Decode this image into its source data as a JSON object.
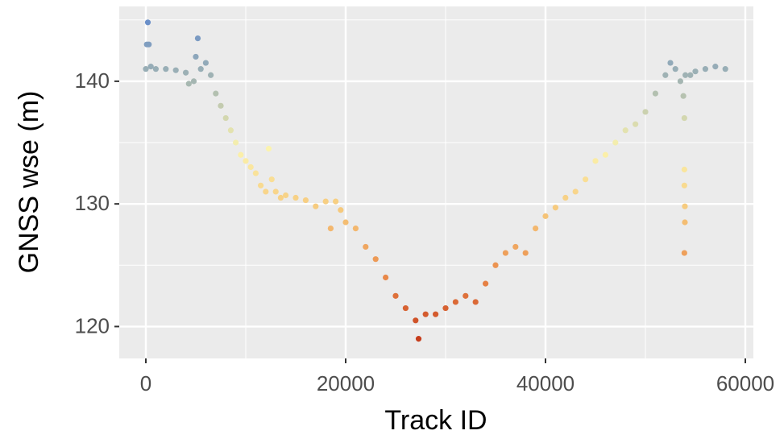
{
  "chart_data": {
    "type": "scatter",
    "x_label": "Track ID",
    "y_label": "GNSS wse (m)",
    "xlim": [
      -2661,
      60806
    ],
    "ylim": [
      117.4,
      146.1
    ],
    "xticks": [
      0,
      20000,
      40000,
      60000
    ],
    "yticks": [
      120,
      130,
      140
    ],
    "x_minor_ticks": [
      10000,
      30000,
      50000
    ],
    "y_minor_ticks": [
      125,
      135,
      145
    ],
    "grid": true,
    "colors": [
      "#c63d1c",
      "#ea8a4a",
      "#f6c77a",
      "#fbf3ae",
      "#a9b9b0",
      "#6a8fc8"
    ],
    "x": [
      0,
      100,
      200,
      300,
      500,
      1000,
      2000,
      3000,
      4000,
      4300,
      4800,
      5000,
      5200,
      5500,
      6000,
      6500,
      7000,
      7500,
      8000,
      8500,
      9000,
      9500,
      10000,
      10500,
      11000,
      11500,
      12000,
      12300,
      12600,
      13000,
      13500,
      14000,
      15000,
      16000,
      17000,
      18000,
      18500,
      19000,
      19500,
      20000,
      21000,
      22000,
      23000,
      24000,
      25000,
      26000,
      27000,
      27300,
      28000,
      29000,
      30000,
      31000,
      32000,
      33000,
      34000,
      35000,
      36000,
      37000,
      38000,
      39000,
      40000,
      41000,
      42000,
      43000,
      44000,
      45000,
      46000,
      47000,
      48000,
      49000,
      50000,
      51000,
      52000,
      52500,
      53000,
      53500,
      53800,
      54000,
      54500,
      55000,
      56000,
      57000,
      58000,
      53900,
      53900,
      53900,
      53950,
      53950,
      53900
    ],
    "values": [
      141,
      143,
      144.8,
      143,
      141.2,
      141,
      141,
      140.9,
      140.7,
      139.8,
      140,
      142,
      143.5,
      141,
      141.5,
      140.5,
      139,
      138,
      137,
      136,
      135,
      134,
      133.5,
      133,
      132.5,
      131.5,
      131,
      134.5,
      132,
      131,
      130.5,
      130.7,
      130.5,
      130.3,
      129.8,
      130.2,
      128,
      130.2,
      129.5,
      128.5,
      128,
      126.5,
      125.5,
      124,
      122.5,
      121.5,
      120.5,
      119,
      121,
      121,
      121.5,
      122,
      122.5,
      122,
      123.5,
      125,
      126,
      126.5,
      126,
      128,
      129,
      129.7,
      130.5,
      131,
      132,
      133.5,
      134,
      135,
      136,
      136.5,
      137.5,
      139,
      140.5,
      141.5,
      141,
      140,
      138.8,
      140.5,
      140.5,
      140.8,
      141,
      141.2,
      141,
      137,
      132.8,
      131.5,
      129.8,
      128.5,
      126
    ]
  }
}
